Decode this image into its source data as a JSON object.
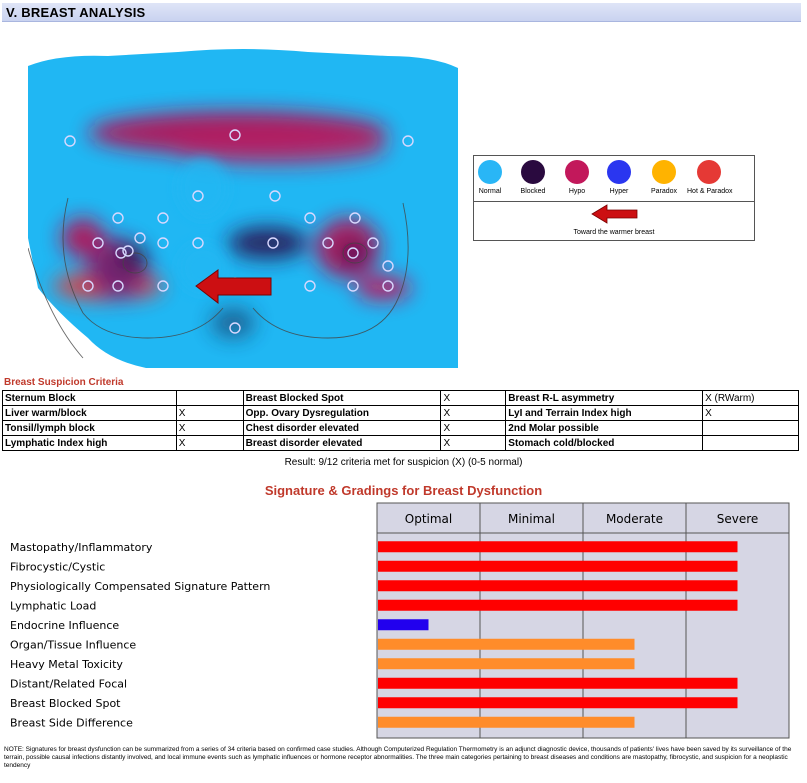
{
  "section": {
    "title": "V. BREAST ANALYSIS"
  },
  "legend": {
    "items": [
      {
        "label": "Normal",
        "color": "#29b6f6"
      },
      {
        "label": "Blocked",
        "color": "#2a0a3f"
      },
      {
        "label": "Hypo",
        "color": "#c2185b"
      },
      {
        "label": "Hyper",
        "color": "#2a36f0"
      },
      {
        "label": "Paradox",
        "color": "#ffb300"
      },
      {
        "label": "Hot & Paradox",
        "color": "#e53935"
      }
    ],
    "caption": "Toward the warmer breast"
  },
  "criteria": {
    "title": "Breast Suspicion Criteria",
    "rows": [
      [
        {
          "label": "Sternum Block",
          "mark": ""
        },
        {
          "label": "Breast Blocked Spot",
          "mark": "X"
        },
        {
          "label": "Breast R-L asymmetry",
          "mark": "X (RWarm)"
        }
      ],
      [
        {
          "label": "Liver warm/block",
          "mark": "X"
        },
        {
          "label": "Opp. Ovary Dysregulation",
          "mark": "X"
        },
        {
          "label": "LyI and Terrain Index high",
          "mark": "X"
        }
      ],
      [
        {
          "label": "Tonsil/lymph block",
          "mark": "X"
        },
        {
          "label": "Chest disorder elevated",
          "mark": "X"
        },
        {
          "label": "2nd Molar possible",
          "mark": ""
        }
      ],
      [
        {
          "label": "Lymphatic Index high",
          "mark": "X"
        },
        {
          "label": "Breast disorder elevated",
          "mark": "X"
        },
        {
          "label": "Stomach cold/blocked",
          "mark": ""
        }
      ]
    ],
    "result": "Result:  9/12 criteria met for suspicion (X) (0-5 normal)"
  },
  "chart_data": {
    "type": "bar",
    "title": "Signature & Gradings for Breast Dysfunction",
    "orientation": "horizontal",
    "grade_columns": [
      "Optimal",
      "Minimal",
      "Moderate",
      "Severe"
    ],
    "xlim": [
      0,
      4
    ],
    "categories": [
      "Mastopathy/Inflammatory",
      "Fibrocystic/Cystic",
      "Physiologically Compensated Signature Pattern",
      "Lymphatic Load",
      "Endocrine Influence",
      "Organ/Tissue Influence",
      "Heavy Metal Toxicity",
      "Distant/Related Focal",
      "Breast Blocked Spot",
      "Breast Side Difference"
    ],
    "values": [
      3.5,
      3.5,
      3.5,
      3.5,
      0.5,
      2.5,
      2.5,
      3.5,
      3.5,
      2.5
    ],
    "colors": [
      "#ff0000",
      "#ff0000",
      "#ff0000",
      "#ff0000",
      "#2200ee",
      "#ff8c2a",
      "#ff8c2a",
      "#ff0000",
      "#ff0000",
      "#ff8c2a"
    ],
    "grid": true
  },
  "note": "NOTE: Signatures for breast dysfunction can be summarized from a series of 34 criteria based on confirmed case studies. Although Computerized Regulation Thermometry is an adjunct diagnostic device, thousands of patients' lives have been saved by its surveillance of the terrain, possible causal infections distantly involved, and local immune events such as lymphatic influences or hormone receptor abnormalities. The three main categories pertaining to breast diseases and conditions are mastopathy, fibrocystic, and suspicion for a neoplastic tendency"
}
